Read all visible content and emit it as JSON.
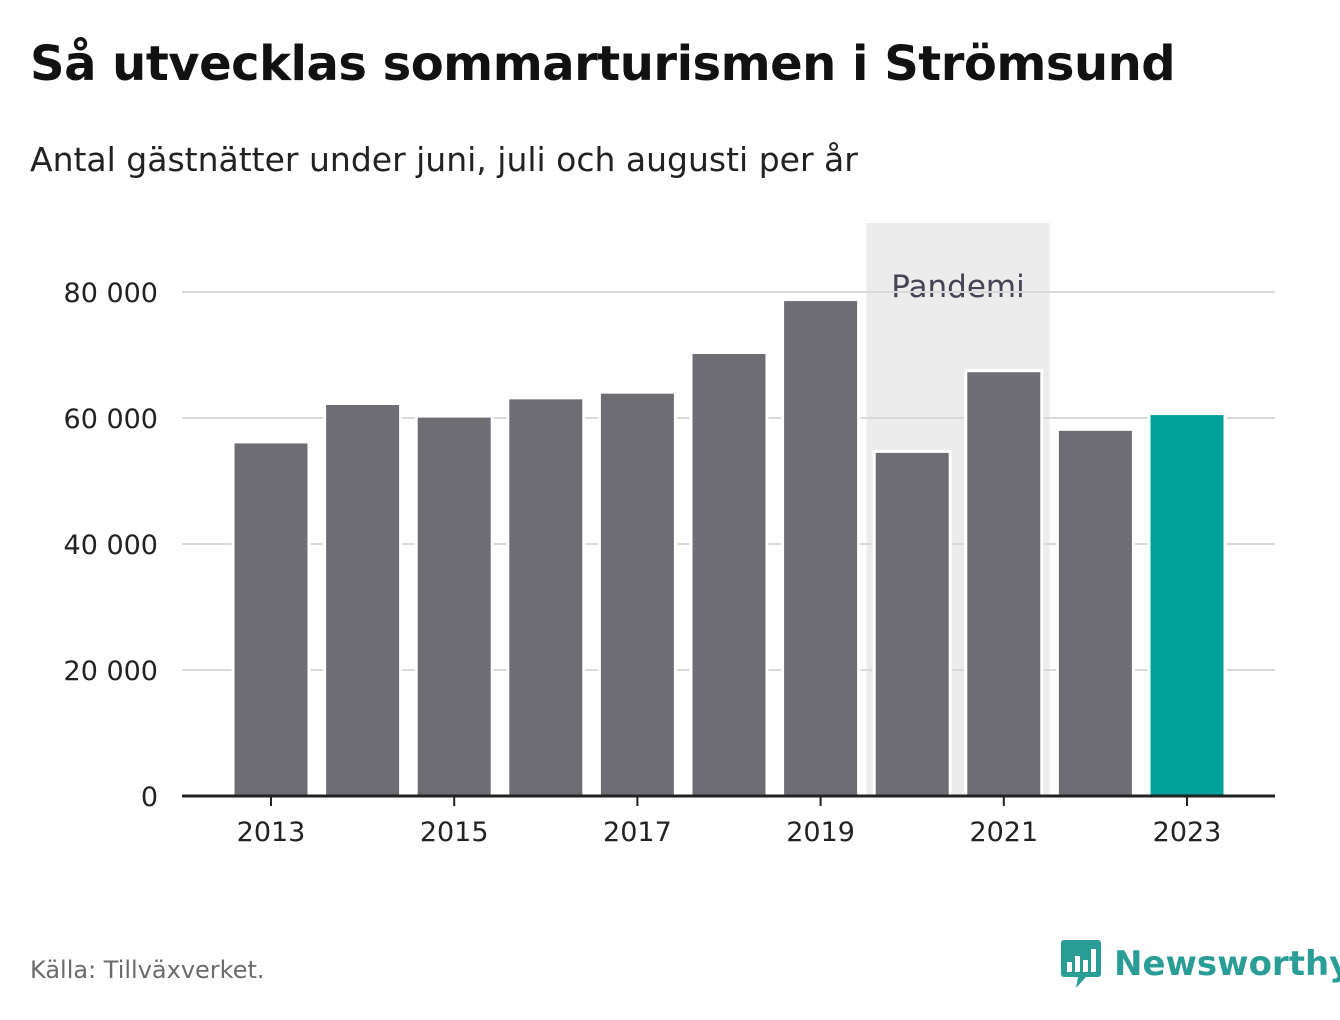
{
  "header": {
    "title": "Så utvecklas sommarturismen i Strömsund",
    "subtitle": "Antal gästnätter under juni, juli och augusti per år"
  },
  "footer": {
    "source": "Källa: Tillväxverket.",
    "brand_name": "Newsworthy",
    "brand_icon": "newsworthy-logo-icon"
  },
  "colors": {
    "bar": "#6e6d74",
    "highlight_bar": "#00a39a",
    "shade": "#ececec",
    "grid": "#d9d9d9",
    "axis": "#222222",
    "brand": "#2a9d97"
  },
  "chart_data": {
    "type": "bar",
    "title": "Så utvecklas sommarturismen i Strömsund",
    "subtitle": "Antal gästnätter under juni, juli och augusti per år",
    "categories": [
      "2013",
      "2014",
      "2015",
      "2016",
      "2017",
      "2018",
      "2019",
      "2020",
      "2021",
      "2022",
      "2023"
    ],
    "values": [
      56200,
      62300,
      60300,
      63200,
      64100,
      70400,
      78800,
      54700,
      67500,
      58200,
      60700
    ],
    "highlight_category": "2023",
    "x_tick_labels": [
      "2013",
      "2015",
      "2017",
      "2019",
      "2021",
      "2023"
    ],
    "y_ticks": [
      0,
      20000,
      40000,
      60000,
      80000
    ],
    "y_tick_labels": [
      "0",
      "20 000",
      "40 000",
      "60 000",
      "80 000"
    ],
    "ylim": [
      0,
      91000
    ],
    "grid": true,
    "annotation": {
      "label": "Pandemi",
      "from": "2020",
      "to": "2021"
    }
  }
}
